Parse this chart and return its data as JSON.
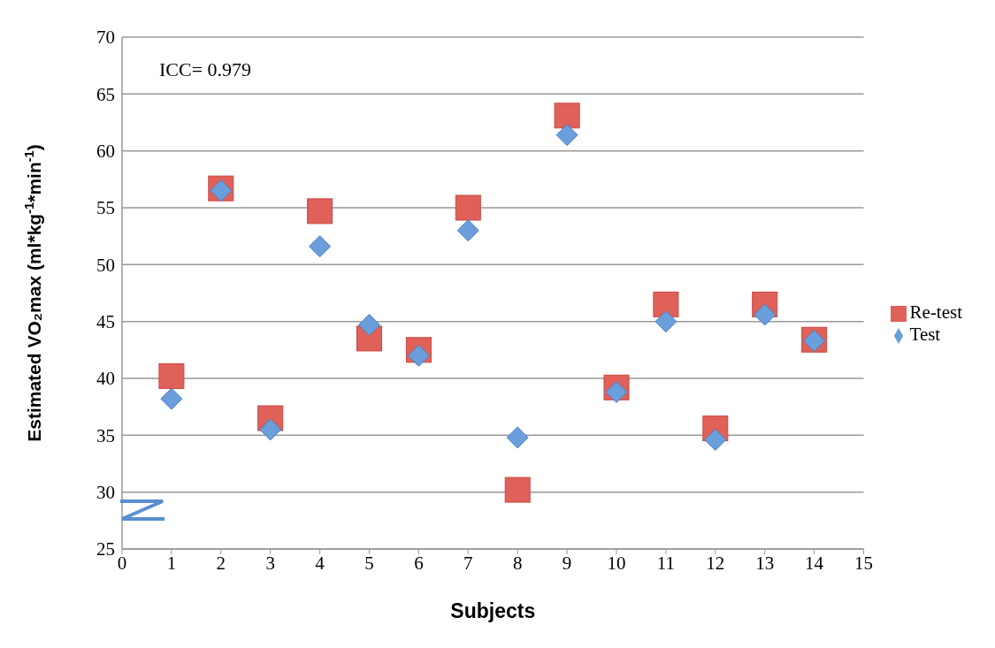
{
  "chart_data": {
    "type": "scatter",
    "xlabel": "Subjects",
    "ylabel": "Estimated VO₂max (ml*kg$^{-1}$*min$^{-1}$)",
    "annotations": [
      "ICC= 0.979"
    ],
    "x": [
      1,
      2,
      3,
      4,
      5,
      6,
      7,
      8,
      9,
      10,
      11,
      12,
      13,
      14
    ],
    "series": [
      {
        "name": "Re-test",
        "color": "#e0605a",
        "marker": "square",
        "values": [
          40.2,
          56.7,
          36.5,
          54.7,
          43.5,
          42.5,
          55.0,
          30.2,
          63.1,
          39.2,
          46.5,
          35.6,
          46.5,
          43.4
        ]
      },
      {
        "name": "Test",
        "color": "#6a9fdc",
        "marker": "diamond",
        "values": [
          38.2,
          56.5,
          35.5,
          51.6,
          44.7,
          42.0,
          53.0,
          34.8,
          61.4,
          38.8,
          45.0,
          34.6,
          45.6,
          43.3
        ]
      }
    ],
    "xlim": [
      0,
      15
    ],
    "xticks": [
      0,
      1,
      2,
      3,
      4,
      5,
      6,
      7,
      8,
      9,
      10,
      11,
      12,
      13,
      14,
      15
    ],
    "ylim": [
      25,
      70
    ],
    "yticks": [
      25,
      30,
      35,
      40,
      45,
      50,
      55,
      60,
      65,
      70
    ],
    "grid": "y",
    "legend": "right"
  }
}
